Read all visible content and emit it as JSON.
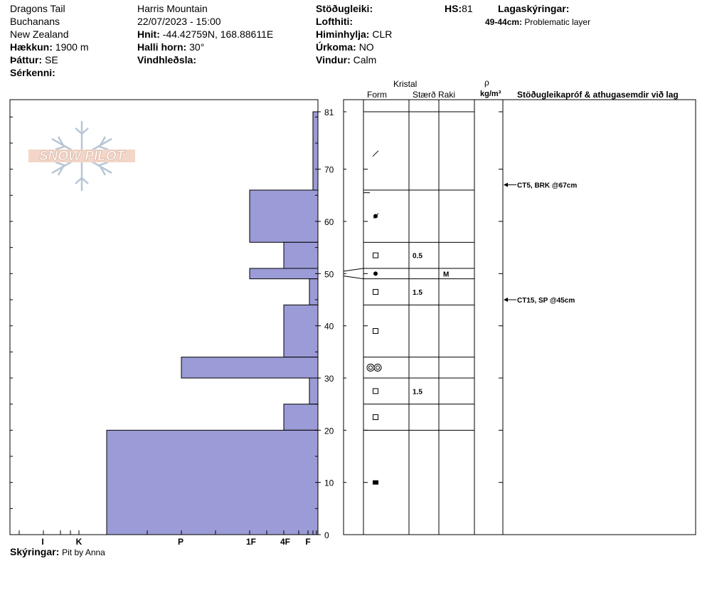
{
  "header": {
    "col1": {
      "site": "Dragons Tail",
      "region": "Buchanans",
      "country": "New Zealand",
      "elevation_label": "Hækkun:",
      "elevation_value": "1900 m",
      "aspect_label": "Þáttur:",
      "aspect_value": "SE",
      "specifics_label": "Sérkenni:"
    },
    "col2": {
      "location": "Harris Mountain",
      "datetime": "22/07/2023 - 15:00",
      "coords_label": "Hnit:",
      "coords_value": "-44.42759N, 168.88611E",
      "slope_label": "Halli horn:",
      "slope_value": "30°",
      "wind_loading_label": "Vindhleðsla:"
    },
    "col3": {
      "stability_label": "Stöðugleiki:",
      "air_temp_label": "Lofthiti:",
      "sky_label": "Himinhylja:",
      "sky_value": "CLR",
      "precip_label": "Úrkoma:",
      "precip_value": "NO",
      "wind_label": "Vindur:",
      "wind_value": "Calm"
    },
    "hs_label": "HS:",
    "hs_value": "81",
    "legend_label": "Lagaskýringar:",
    "legend_range": "49-44cm:",
    "legend_text": "Problematic layer"
  },
  "logo_text": "SNOW PILOT",
  "columns": {
    "crystal": "Kristal",
    "form": "Form",
    "size": "Stærð",
    "moisture": "Raki",
    "density_symbol": "ρ",
    "density_unit": "kg/m³",
    "tests": "Stöðugleikapróf & athugasemdir við lag"
  },
  "hardness_ticks": [
    "I",
    "K",
    "P",
    "1F",
    "4F",
    "F"
  ],
  "comments_label": "Skýringar:",
  "comments_value": "Pit by Anna",
  "chart_data": {
    "type": "bar",
    "y_axis": {
      "ylim": [
        0,
        81
      ],
      "ticks": [
        0,
        10,
        20,
        30,
        40,
        50,
        60,
        70,
        81
      ]
    },
    "x_axis": {
      "categories": [
        "I",
        "K",
        "P",
        "1F",
        "4F",
        "F"
      ]
    },
    "hardness_profile": [
      {
        "top": 81,
        "bottom": 66,
        "hardness": "F"
      },
      {
        "top": 66,
        "bottom": 56,
        "hardness": "1F"
      },
      {
        "top": 56,
        "bottom": 51,
        "hardness": "4F"
      },
      {
        "top": 51,
        "bottom": 49,
        "hardness": "1F"
      },
      {
        "top": 49,
        "bottom": 44,
        "hardness": "F"
      },
      {
        "top": 44,
        "bottom": 34,
        "hardness": "4F"
      },
      {
        "top": 34,
        "bottom": 30,
        "hardness": "P"
      },
      {
        "top": 30,
        "bottom": 25,
        "hardness": "F"
      },
      {
        "top": 25,
        "bottom": 20,
        "hardness": "4F"
      },
      {
        "top": 20,
        "bottom": 0,
        "hardness": "K+"
      }
    ],
    "layer_boundaries": [
      81,
      66,
      56,
      51,
      49,
      44,
      34,
      30,
      25,
      20
    ],
    "layer_symbols": [
      {
        "depth": 73,
        "symbol": "slash"
      },
      {
        "depth": 61,
        "symbol": "dot-cross"
      },
      {
        "depth": 53.5,
        "symbol": "square",
        "size": "0.5"
      },
      {
        "depth": 50,
        "symbol": "dot",
        "moisture": "M"
      },
      {
        "depth": 46.5,
        "symbol": "square",
        "size": "1.5"
      },
      {
        "depth": 39,
        "symbol": "square"
      },
      {
        "depth": 32,
        "symbol": "double-ring"
      },
      {
        "depth": 27.5,
        "symbol": "square",
        "size": "1.5"
      },
      {
        "depth": 22.5,
        "symbol": "square"
      },
      {
        "depth": 10,
        "symbol": "filled-square"
      }
    ],
    "stability_tests": [
      {
        "depth": 67,
        "label": "CT5, BRK @67cm"
      },
      {
        "depth": 45,
        "label": "CT15, SP @45cm"
      }
    ]
  }
}
